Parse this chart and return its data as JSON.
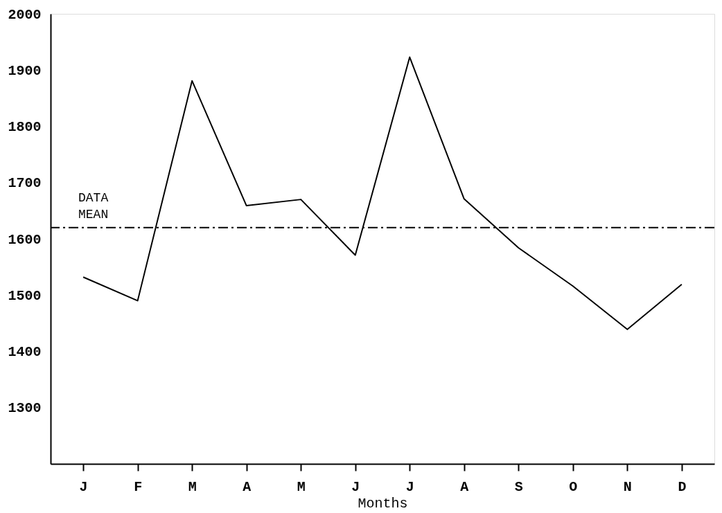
{
  "chart_data": {
    "type": "line",
    "xlabel": "Months",
    "categories": [
      "J",
      "F",
      "M",
      "A",
      "M",
      "J",
      "J",
      "A",
      "S",
      "O",
      "N",
      "D"
    ],
    "series": [
      {
        "color": "#000000",
        "values": [
          1532,
          1490,
          1881,
          1659,
          1670,
          1571,
          1923,
          1671,
          1584,
          1516,
          1439,
          1519
        ]
      }
    ],
    "ylim": [
      1200,
      2000
    ],
    "yticks": [
      1300,
      1400,
      1500,
      1600,
      1700,
      1800,
      1900,
      2000
    ],
    "ref_lines": [
      {
        "axis": "y",
        "value": 1620,
        "label": "DATA MEAN",
        "color": "#000000",
        "line_style": "dashdot"
      }
    ],
    "grid": false,
    "marker": "none",
    "line_style": "solid"
  }
}
